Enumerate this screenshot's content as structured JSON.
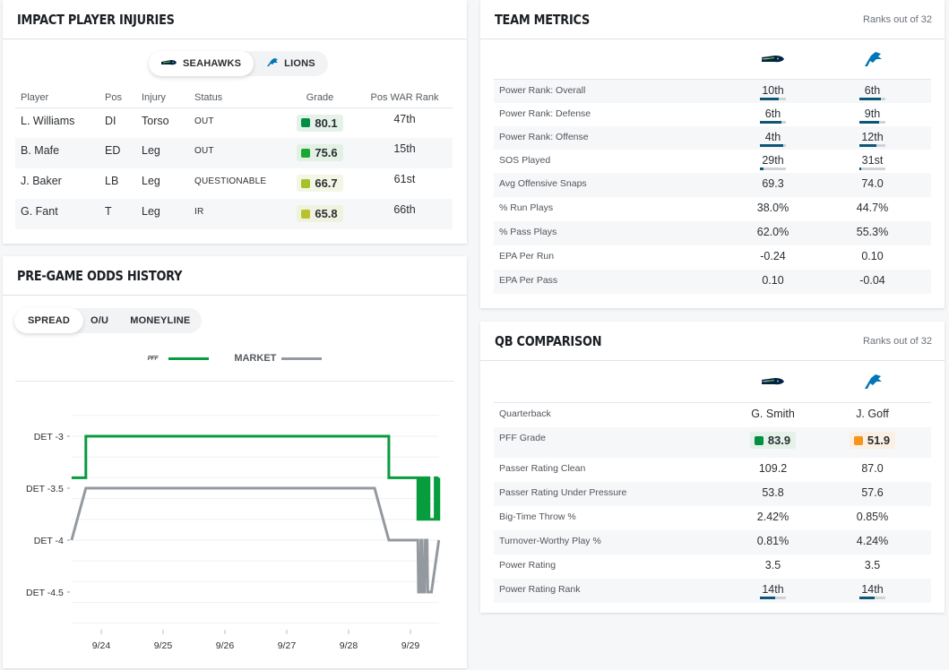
{
  "colors": {
    "pff_line": "#079c3d",
    "market_line": "#9499a0",
    "rank_fill": "#0e5676",
    "rank_track": "#cfd3d7",
    "seahawks": "#002244",
    "lions": "#0076b6"
  },
  "injuries": {
    "title": "IMPACT PLAYER INJURIES",
    "team_tabs": [
      {
        "label": "SEAHAWKS",
        "icon": "seahawks-logo-icon",
        "active": true
      },
      {
        "label": "LIONS",
        "icon": "lions-logo-icon",
        "active": false
      }
    ],
    "columns": [
      "Player",
      "Pos",
      "Injury",
      "Status",
      "Grade",
      "Pos WAR Rank"
    ],
    "rows": [
      {
        "player": "L. Williams",
        "pos": "DI",
        "injury": "Torso",
        "status": "OUT",
        "grade": "80.1",
        "grade_color": "#008f45",
        "grade_bg": "#e4f2ea",
        "war_rank": "47th"
      },
      {
        "player": "B. Mafe",
        "pos": "ED",
        "injury": "Leg",
        "status": "OUT",
        "grade": "75.6",
        "grade_color": "#1aa835",
        "grade_bg": "#e3f1e5",
        "war_rank": "15th"
      },
      {
        "player": "J. Baker",
        "pos": "LB",
        "injury": "Leg",
        "status": "QUESTIONABLE",
        "grade": "66.7",
        "grade_color": "#a5c12b",
        "grade_bg": "#f3f6e4",
        "war_rank": "61st"
      },
      {
        "player": "G. Fant",
        "pos": "T",
        "injury": "Leg",
        "status": "IR",
        "grade": "65.8",
        "grade_color": "#b8c22a",
        "grade_bg": "#f0f2e0",
        "war_rank": "66th"
      }
    ]
  },
  "odds": {
    "title": "PRE-GAME ODDS HISTORY",
    "tabs": [
      {
        "label": "SPREAD",
        "active": true
      },
      {
        "label": "O/U",
        "active": false
      },
      {
        "label": "MONEYLINE",
        "active": false
      }
    ],
    "legend": [
      {
        "label": "PFF",
        "icon": "pff-logo-icon",
        "color": "#079c3d"
      },
      {
        "label": "MARKET",
        "color": "#9499a0"
      }
    ]
  },
  "chart_data": {
    "type": "line",
    "title": "Pre-Game Odds History (Spread)",
    "xlabel": "",
    "ylabel": "",
    "x_ticks": [
      "9/24",
      "9/25",
      "9/26",
      "9/27",
      "9/28",
      "9/29"
    ],
    "x_unit": "days after 9/24 00:00",
    "xlim": [
      -0.48,
      5.46
    ],
    "y_ticks": [
      {
        "value": -3,
        "label": "DET -3"
      },
      {
        "value": -3.5,
        "label": "DET -3.5"
      },
      {
        "value": -4,
        "label": "DET -4"
      },
      {
        "value": -4.5,
        "label": "DET -4.5"
      }
    ],
    "ylim": [
      -4.85,
      -2.8
    ],
    "grid": true,
    "legend_position": "top-center",
    "series": [
      {
        "name": "PFF",
        "color": "#079c3d",
        "step": true,
        "points": [
          [
            -0.48,
            -3.4
          ],
          [
            -0.25,
            -3.4
          ],
          [
            -0.25,
            -3.0
          ],
          [
            4.65,
            -3.0
          ],
          [
            4.65,
            -3.4
          ],
          [
            5.12,
            -3.4
          ],
          [
            5.12,
            -3.8
          ],
          [
            5.15,
            -3.8
          ],
          [
            5.15,
            -3.4
          ],
          [
            5.17,
            -3.4
          ],
          [
            5.17,
            -3.8
          ],
          [
            5.2,
            -3.8
          ],
          [
            5.2,
            -3.4
          ],
          [
            5.24,
            -3.4
          ],
          [
            5.24,
            -3.8
          ],
          [
            5.27,
            -3.8
          ],
          [
            5.27,
            -3.4
          ],
          [
            5.3,
            -3.4
          ],
          [
            5.3,
            -3.8
          ],
          [
            5.4,
            -3.8
          ],
          [
            5.4,
            -3.4
          ],
          [
            5.43,
            -3.4
          ],
          [
            5.43,
            -3.8
          ],
          [
            5.46,
            -3.8
          ],
          [
            5.46,
            -3.4
          ]
        ]
      },
      {
        "name": "MARKET",
        "color": "#9499a0",
        "step": false,
        "points": [
          [
            -0.48,
            -4.0
          ],
          [
            -0.25,
            -3.5
          ],
          [
            4.42,
            -3.5
          ],
          [
            4.65,
            -4.0
          ],
          [
            5.12,
            -4.0
          ],
          [
            5.13,
            -4.5
          ],
          [
            5.16,
            -4.5
          ],
          [
            5.17,
            -4.0
          ],
          [
            5.19,
            -4.0
          ],
          [
            5.2,
            -4.5
          ],
          [
            5.23,
            -4.5
          ],
          [
            5.24,
            -4.0
          ],
          [
            5.27,
            -4.0
          ],
          [
            5.28,
            -4.5
          ],
          [
            5.34,
            -4.5
          ],
          [
            5.46,
            -4.0
          ]
        ]
      }
    ]
  },
  "metrics": {
    "title": "TEAM METRICS",
    "subtitle": "Ranks out of 32",
    "teams": [
      {
        "name": "Seahawks",
        "icon": "seahawks-logo-icon"
      },
      {
        "name": "Lions",
        "icon": "lions-logo-icon"
      }
    ],
    "rows": [
      {
        "label": "Power Rank: Overall",
        "values": [
          "10th",
          "6th"
        ],
        "ranks": [
          10,
          6
        ]
      },
      {
        "label": "Power Rank: Defense",
        "values": [
          "6th",
          "9th"
        ],
        "ranks": [
          6,
          9
        ]
      },
      {
        "label": "Power Rank: Offense",
        "values": [
          "4th",
          "12th"
        ],
        "ranks": [
          4,
          12
        ]
      },
      {
        "label": "SOS Played",
        "values": [
          "29th",
          "31st"
        ],
        "ranks": [
          29,
          31
        ]
      },
      {
        "label": "Avg Offensive Snaps",
        "values": [
          "69.3",
          "74.0"
        ]
      },
      {
        "label": "% Run Plays",
        "values": [
          "38.0%",
          "44.7%"
        ]
      },
      {
        "label": "% Pass Plays",
        "values": [
          "62.0%",
          "55.3%"
        ]
      },
      {
        "label": "EPA Per Run",
        "values": [
          "-0.24",
          "0.10"
        ]
      },
      {
        "label": "EPA Per Pass",
        "values": [
          "0.10",
          "-0.04"
        ]
      }
    ]
  },
  "qb": {
    "title": "QB COMPARISON",
    "subtitle": "Ranks out of 32",
    "teams": [
      {
        "name": "Seahawks",
        "icon": "seahawks-logo-icon"
      },
      {
        "name": "Lions",
        "icon": "lions-logo-icon"
      }
    ],
    "rows": [
      {
        "label": "Quarterback",
        "values": [
          "G. Smith",
          "J. Goff"
        ]
      },
      {
        "label": "PFF Grade",
        "values": [
          "83.9",
          "51.9"
        ],
        "grades": [
          {
            "color": "#008f45",
            "bg": "#e4f2ea"
          },
          {
            "color": "#f7941d",
            "bg": "#fcefe3"
          }
        ]
      },
      {
        "label": "Passer Rating Clean",
        "values": [
          "109.2",
          "87.0"
        ]
      },
      {
        "label": "Passer Rating Under Pressure",
        "values": [
          "53.8",
          "57.6"
        ]
      },
      {
        "label": "Big-Time Throw %",
        "values": [
          "2.42%",
          "0.85%"
        ]
      },
      {
        "label": "Turnover-Worthy Play %",
        "values": [
          "0.81%",
          "4.24%"
        ]
      },
      {
        "label": "Power Rating",
        "values": [
          "3.5",
          "3.5"
        ]
      },
      {
        "label": "Power Rating Rank",
        "values": [
          "14th",
          "14th"
        ],
        "ranks": [
          14,
          14
        ]
      }
    ]
  }
}
